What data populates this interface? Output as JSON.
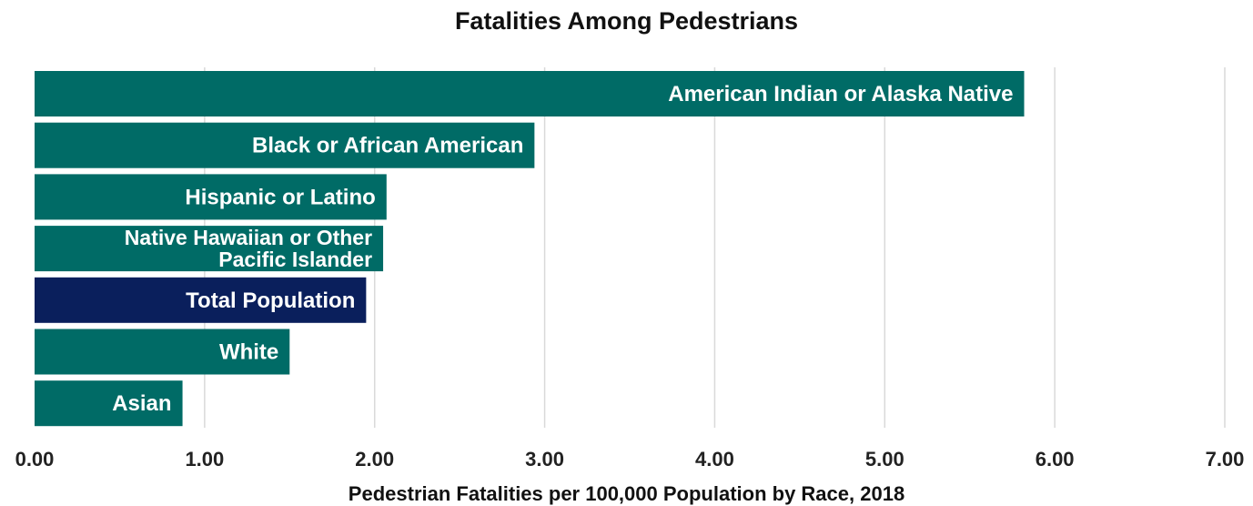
{
  "chart_data": {
    "type": "bar",
    "orientation": "horizontal",
    "title": "Fatalities Among Pedestrians",
    "xlabel": "Pedestrian Fatalities per 100,000 Population by Race, 2018",
    "ylabel": "",
    "xlim": [
      0,
      7
    ],
    "x_ticks": [
      "0.00",
      "1.00",
      "2.00",
      "3.00",
      "4.00",
      "5.00",
      "6.00",
      "7.00"
    ],
    "grid": "vertical",
    "categories": [
      [
        "American Indian or Alaska Native"
      ],
      [
        "Black or African American"
      ],
      [
        "Hispanic or Latino"
      ],
      [
        "Native Hawaiian or Other",
        "Pacific Islander"
      ],
      [
        "Total Population"
      ],
      [
        "White"
      ],
      [
        "Asian"
      ]
    ],
    "values": [
      5.82,
      2.94,
      2.07,
      2.05,
      1.95,
      1.5,
      0.87
    ],
    "colors": [
      "#006b66",
      "#006b66",
      "#006b66",
      "#006b66",
      "#0a1f5c",
      "#006b66",
      "#006b66"
    ]
  }
}
